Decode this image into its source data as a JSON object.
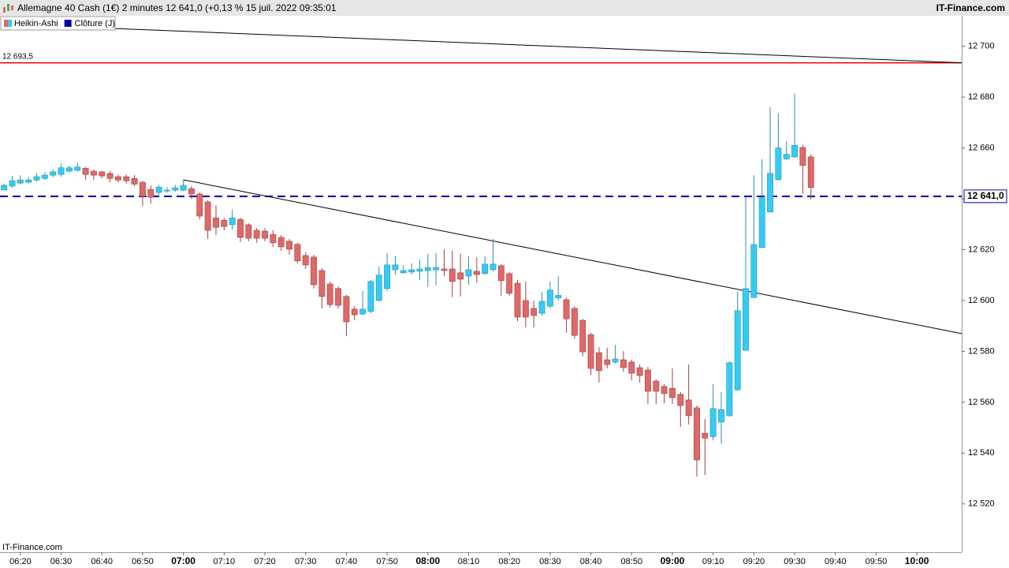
{
  "chart_data": {
    "type": "candlestick",
    "title": "Allemagne 40 Cash (1€) 2 minutes 12 641,0 (+0,13 % 15 juil. 2022 09:35:01",
    "source": "IT-Finance.com",
    "watermark": "IT-Finance.com",
    "x": [
      "06:16",
      "06:18",
      "06:20",
      "06:22",
      "06:24",
      "06:26",
      "06:28",
      "06:30",
      "06:32",
      "06:34",
      "06:36",
      "06:38",
      "06:40",
      "06:42",
      "06:44",
      "06:46",
      "06:48",
      "06:50",
      "06:52",
      "06:54",
      "06:56",
      "06:58",
      "07:00",
      "07:02",
      "07:04",
      "07:06",
      "07:08",
      "07:10",
      "07:12",
      "07:14",
      "07:16",
      "07:18",
      "07:20",
      "07:22",
      "07:24",
      "07:26",
      "07:28",
      "07:30",
      "07:32",
      "07:34",
      "07:36",
      "07:38",
      "07:40",
      "07:42",
      "07:44",
      "07:46",
      "07:48",
      "07:50",
      "07:52",
      "07:54",
      "07:56",
      "07:58",
      "08:00",
      "08:02",
      "08:04",
      "08:06",
      "08:08",
      "08:10",
      "08:12",
      "08:14",
      "08:16",
      "08:18",
      "08:20",
      "08:22",
      "08:24",
      "08:26",
      "08:28",
      "08:30",
      "08:32",
      "08:34",
      "08:36",
      "08:38",
      "08:40",
      "08:42",
      "08:44",
      "08:46",
      "08:48",
      "08:50",
      "08:52",
      "08:54",
      "08:56",
      "08:58",
      "09:00",
      "09:02",
      "09:04",
      "09:06",
      "09:08",
      "09:10",
      "09:12",
      "09:14",
      "09:16",
      "09:18",
      "09:20",
      "09:22",
      "09:24",
      "09:26",
      "09:28",
      "09:30",
      "09:32",
      "09:34"
    ],
    "series": [
      {
        "name": "Heikin-Ashi",
        "up_color": "#33ccf5",
        "down_color": "#e06868",
        "open": [
          12643.5,
          12645,
          12646.2,
          12646.5,
          12647.4,
          12648,
          12649.3,
          12649.6,
          12650.9,
          12651.2,
          12652,
          12650.9,
          12650.6,
          12650,
          12648.7,
          12648.7,
          12648,
          12646.5,
          12643.7,
          12642.5,
          12643.1,
          12643.4,
          12643.4,
          12644,
          12641.9,
          12638.8,
          12632.5,
          12631.6,
          12629.8,
          12631.9,
          12629.8,
          12627.6,
          12627.3,
          12626,
          12624.8,
          12623.3,
          12622.1,
          12617.7,
          12617.1,
          12611.8,
          12606.5,
          12604.7,
          12601.6,
          12596.6,
          12594.7,
          12595.7,
          12600,
          12604.7,
          12612.1,
          12610.9,
          12611.2,
          12611.5,
          12611.8,
          12612.1,
          12612.4,
          12612.4,
          12610.9,
          12609.6,
          12611.5,
          12610.6,
          12612.1,
          12613.7,
          12610.6,
          12606.8,
          12600,
          12596.9,
          12595,
          12597.8,
          12601,
          12600.3,
          12596.9,
          12592.2,
          12586.6,
          12579.5,
          12576.7,
          12575.8,
          12576.7,
          12575.8,
          12573.6,
          12572.7,
          12568.3,
          12566.2,
          12565.5,
          12563.1,
          12560.9,
          12557.8,
          12547.8,
          12546.5,
          12552.2,
          12554.7,
          12564.9,
          12580.4,
          12601.2,
          12620.8,
          12634.8,
          12647.5,
          12655.7,
          12656.5,
          12660.2,
          12656.5
        ],
        "high": [
          12646,
          12649,
          12649.3,
          12648.5,
          12650,
          12650.6,
          12651.6,
          12654,
          12653,
          12654.3,
          12652.5,
          12651.6,
          12651,
          12651,
          12649.5,
          12649.5,
          12649.3,
          12647.1,
          12645.3,
          12645.5,
          12644.6,
          12645.5,
          12647.4,
          12645,
          12642.5,
          12639.4,
          12637.5,
          12632.5,
          12635.7,
          12632.5,
          12630.4,
          12628.5,
          12628.5,
          12627.6,
          12625.7,
          12624.2,
          12622.7,
          12619,
          12618,
          12612.7,
          12607.5,
          12605.6,
          12602.2,
          12597.8,
          12603.7,
          12608.1,
          12613.4,
          12618.7,
          12617.4,
          12614,
          12614.6,
          12616,
          12618.4,
          12618.7,
          12620.2,
          12619.6,
          12618.4,
          12617.4,
          12617,
          12617.4,
          12624.2,
          12614.3,
          12611.2,
          12608.1,
          12607.5,
          12600,
          12603.4,
          12607.5,
          12609.6,
          12601.2,
          12597.8,
          12592.8,
          12587.3,
          12581.7,
          12581.4,
          12582.6,
          12580.1,
          12576.7,
          12574.8,
          12573.9,
          12569,
          12567.1,
          12573.3,
          12564,
          12574.8,
          12558.7,
          12553.4,
          12567.1,
          12564,
          12576.1,
          12603.4,
          12641,
          12649.3,
          12655.6,
          12676.1,
          12673.6,
          12662.7,
          12681.4,
          12661.2,
          12657.5
        ],
        "low": [
          12643.5,
          12644.3,
          12645.6,
          12646,
          12646.8,
          12647.5,
          12648.5,
          12648.7,
          12650.3,
          12650.6,
          12647.5,
          12647.4,
          12648,
          12646.5,
          12646.5,
          12646,
          12645,
          12637.2,
          12638.1,
          12641.5,
          12642.4,
          12642.8,
          12643.1,
          12640,
          12631.9,
          12624.2,
          12625.7,
          12627.6,
          12627.9,
          12623,
          12623.3,
          12622.7,
          12623.3,
          12621.1,
          12619.6,
          12618.1,
          12614.6,
          12612.4,
          12604.7,
          12596.9,
          12597.2,
          12596.9,
          12586,
          12592.2,
          12594.4,
          12595,
          12599.7,
          12603.7,
          12610.2,
          12610.6,
          12610.2,
          12608,
          12605.3,
          12605.9,
          12609.6,
          12601.3,
          12601.6,
          12606.2,
          12607,
          12610,
          12611.5,
          12601.9,
          12601.9,
          12591.9,
          12589.4,
          12589.4,
          12594.1,
          12596.9,
          12600,
          12587.3,
          12585,
          12578,
          12570.8,
          12567.7,
          12573.3,
          12575.2,
          12572,
          12568.6,
          12567.7,
          12559.3,
          12559.3,
          12559.6,
          12559.3,
          12550.3,
          12551.2,
          12530.7,
          12531.4,
          12545,
          12543.7,
          12554.3,
          12564.6,
          12580.4,
          12600.9,
          12620.8,
          12634.8,
          12647.2,
          12655.3,
          12656.2,
          12642,
          12639.8
        ],
        "close": [
          12645.3,
          12647.1,
          12647.4,
          12647.4,
          12648.7,
          12649.3,
          12650.6,
          12652.2,
          12652.2,
          12652.5,
          12649.6,
          12649.3,
          12649,
          12648,
          12647.4,
          12647.1,
          12645.8,
          12641,
          12640.6,
          12644.6,
          12643.4,
          12644.3,
          12645.3,
          12641.9,
          12633.2,
          12627.6,
          12628.8,
          12629.1,
          12632.5,
          12624.8,
          12624.5,
          12624.5,
          12624.5,
          12622.7,
          12621.1,
          12620.2,
          12615.6,
          12614,
          12606.2,
          12601.6,
          12598.4,
          12598.1,
          12591.6,
          12594.4,
          12596.6,
          12607.5,
          12610,
          12614,
          12614,
          12611.8,
          12612.1,
          12612.4,
          12613,
          12613,
          12611.8,
          12607.5,
          12608.4,
          12612.1,
          12610.2,
          12614.3,
          12614.3,
          12607.8,
          12602.8,
          12593.5,
          12593.5,
          12594.1,
          12599.7,
          12604.1,
          12602,
          12592.8,
          12586.3,
          12579.8,
          12573.3,
          12572.4,
          12574.8,
          12577,
          12573.6,
          12571.4,
          12570.5,
          12564.3,
          12564.3,
          12563.4,
          12561.8,
          12558.7,
          12554.7,
          12537.3,
          12545.9,
          12557.5,
          12557.1,
          12575.5,
          12596,
          12604.7,
          12622,
          12640.4,
          12650,
          12660,
          12657.5,
          12661,
          12653.1,
          12644.4
        ]
      }
    ],
    "hlines": [
      {
        "value": 12693.5,
        "label": "12 693,5",
        "color": "#dd0000"
      },
      {
        "name": "Clôture (J)",
        "value": 12641,
        "label": "12 641,0",
        "color": "#0000b0",
        "dashed": true
      }
    ],
    "trendlines": [
      {
        "x": [
          "06:40",
          "10:11"
        ],
        "y": [
          12707.2,
          12693.5
        ],
        "color": "#000000"
      },
      {
        "x": [
          "07:00",
          "10:11"
        ],
        "y": [
          12647.5,
          12587
        ],
        "color": "#000000"
      }
    ],
    "xlim": [
      "06:15",
      "10:11"
    ],
    "xticks": [
      "06:20",
      "06:30",
      "06:40",
      "06:50",
      "07:00",
      "07:10",
      "07:20",
      "07:30",
      "07:40",
      "07:50",
      "08:00",
      "08:10",
      "08:20",
      "08:30",
      "08:40",
      "08:50",
      "09:00",
      "09:10",
      "09:20",
      "09:30",
      "09:40",
      "09:50",
      "10:00"
    ],
    "ylim": [
      12501,
      12712
    ],
    "yticks": [
      {
        "value": 12520,
        "label": "12 520"
      },
      {
        "value": 12540,
        "label": "12 540"
      },
      {
        "value": 12560,
        "label": "12 560"
      },
      {
        "value": 12580,
        "label": "12 580"
      },
      {
        "value": 12600,
        "label": "12 600"
      },
      {
        "value": 12620,
        "label": "12 620"
      },
      {
        "value": 12640,
        "label": "12 640"
      },
      {
        "value": 12660,
        "label": "12 660"
      },
      {
        "value": 12680,
        "label": "12 680"
      },
      {
        "value": 12700,
        "label": "12 700"
      }
    ]
  }
}
